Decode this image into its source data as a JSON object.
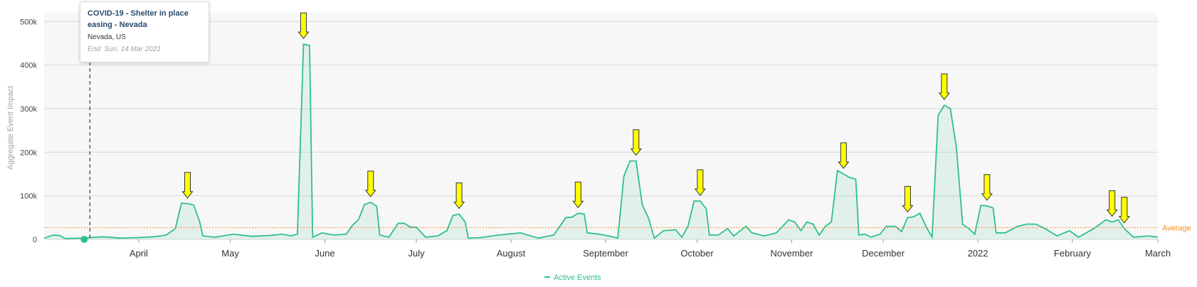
{
  "chart_data": {
    "type": "line",
    "ylabel": "Aggregate Event Impact",
    "ylim": [
      0,
      520000
    ],
    "yticks": [
      "0",
      "100k",
      "200k",
      "300k",
      "400k",
      "500k"
    ],
    "xticks": [
      "April",
      "May",
      "June",
      "July",
      "August",
      "September",
      "October",
      "November",
      "December",
      "2022",
      "February",
      "March"
    ],
    "average_label": "Average",
    "average_value": 27000,
    "legend": "Active Events",
    "x_start": "2021-03-01",
    "x_end": "2022-03-01",
    "series": [
      {
        "name": "Active Events",
        "color": "#2fbf8f",
        "points": [
          [
            "2021-03-01",
            3000
          ],
          [
            "2021-03-04",
            10000
          ],
          [
            "2021-03-06",
            9000
          ],
          [
            "2021-03-08",
            2000
          ],
          [
            "2021-03-14",
            3000
          ],
          [
            "2021-03-20",
            6000
          ],
          [
            "2021-03-26",
            3000
          ],
          [
            "2021-04-01",
            4000
          ],
          [
            "2021-04-06",
            6000
          ],
          [
            "2021-04-10",
            10000
          ],
          [
            "2021-04-13",
            25000
          ],
          [
            "2021-04-15",
            83000
          ],
          [
            "2021-04-17",
            82000
          ],
          [
            "2021-04-19",
            79000
          ],
          [
            "2021-04-21",
            40000
          ],
          [
            "2021-04-22",
            8000
          ],
          [
            "2021-04-26",
            5000
          ],
          [
            "2021-05-02",
            12000
          ],
          [
            "2021-05-08",
            7000
          ],
          [
            "2021-05-14",
            9000
          ],
          [
            "2021-05-18",
            12000
          ],
          [
            "2021-05-21",
            8000
          ],
          [
            "2021-05-23",
            12000
          ],
          [
            "2021-05-25",
            448000
          ],
          [
            "2021-05-27",
            445000
          ],
          [
            "2021-05-28",
            5000
          ],
          [
            "2021-05-31",
            15000
          ],
          [
            "2021-06-04",
            10000
          ],
          [
            "2021-06-08",
            12000
          ],
          [
            "2021-06-10",
            32000
          ],
          [
            "2021-06-12",
            45000
          ],
          [
            "2021-06-14",
            80000
          ],
          [
            "2021-06-16",
            85000
          ],
          [
            "2021-06-18",
            76000
          ],
          [
            "2021-06-19",
            10000
          ],
          [
            "2021-06-22",
            5000
          ],
          [
            "2021-06-25",
            37000
          ],
          [
            "2021-06-27",
            37000
          ],
          [
            "2021-06-29",
            28000
          ],
          [
            "2021-07-01",
            28000
          ],
          [
            "2021-07-04",
            5000
          ],
          [
            "2021-07-08",
            8000
          ],
          [
            "2021-07-11",
            20000
          ],
          [
            "2021-07-13",
            55000
          ],
          [
            "2021-07-15",
            58000
          ],
          [
            "2021-07-17",
            40000
          ],
          [
            "2021-07-18",
            3000
          ],
          [
            "2021-07-22",
            4000
          ],
          [
            "2021-07-28",
            10000
          ],
          [
            "2021-08-04",
            15000
          ],
          [
            "2021-08-10",
            3000
          ],
          [
            "2021-08-15",
            10000
          ],
          [
            "2021-08-19",
            50000
          ],
          [
            "2021-08-21",
            51000
          ],
          [
            "2021-08-23",
            60000
          ],
          [
            "2021-08-25",
            58000
          ],
          [
            "2021-08-26",
            15000
          ],
          [
            "2021-08-30",
            12000
          ],
          [
            "2021-09-02",
            8000
          ],
          [
            "2021-09-05",
            3000
          ],
          [
            "2021-09-07",
            145000
          ],
          [
            "2021-09-09",
            180000
          ],
          [
            "2021-09-11",
            180000
          ],
          [
            "2021-09-13",
            80000
          ],
          [
            "2021-09-15",
            50000
          ],
          [
            "2021-09-17",
            3000
          ],
          [
            "2021-09-20",
            20000
          ],
          [
            "2021-09-24",
            22000
          ],
          [
            "2021-09-26",
            5000
          ],
          [
            "2021-09-28",
            30000
          ],
          [
            "2021-09-30",
            88000
          ],
          [
            "2021-10-02",
            88000
          ],
          [
            "2021-10-04",
            70000
          ],
          [
            "2021-10-05",
            10000
          ],
          [
            "2021-10-08",
            10000
          ],
          [
            "2021-10-11",
            25000
          ],
          [
            "2021-10-13",
            8000
          ],
          [
            "2021-10-17",
            30000
          ],
          [
            "2021-10-19",
            15000
          ],
          [
            "2021-10-23",
            8000
          ],
          [
            "2021-10-27",
            15000
          ],
          [
            "2021-10-31",
            45000
          ],
          [
            "2021-11-02",
            40000
          ],
          [
            "2021-11-04",
            20000
          ],
          [
            "2021-11-06",
            40000
          ],
          [
            "2021-11-08",
            35000
          ],
          [
            "2021-11-10",
            10000
          ],
          [
            "2021-11-12",
            30000
          ],
          [
            "2021-11-14",
            40000
          ],
          [
            "2021-11-16",
            158000
          ],
          [
            "2021-11-18",
            150000
          ],
          [
            "2021-11-20",
            142000
          ],
          [
            "2021-11-22",
            138000
          ],
          [
            "2021-11-23",
            10000
          ],
          [
            "2021-11-25",
            12000
          ],
          [
            "2021-11-27",
            5000
          ],
          [
            "2021-11-30",
            12000
          ],
          [
            "2021-12-02",
            30000
          ],
          [
            "2021-12-05",
            30000
          ],
          [
            "2021-12-07",
            18000
          ],
          [
            "2021-12-09",
            50000
          ],
          [
            "2021-12-11",
            52000
          ],
          [
            "2021-12-13",
            60000
          ],
          [
            "2021-12-15",
            30000
          ],
          [
            "2021-12-17",
            5000
          ],
          [
            "2021-12-19",
            285000
          ],
          [
            "2021-12-21",
            308000
          ],
          [
            "2021-12-23",
            300000
          ],
          [
            "2021-12-25",
            210000
          ],
          [
            "2021-12-27",
            35000
          ],
          [
            "2021-12-29",
            25000
          ],
          [
            "2021-12-31",
            12000
          ],
          [
            "2022-01-02",
            78000
          ],
          [
            "2022-01-04",
            77000
          ],
          [
            "2022-01-06",
            72000
          ],
          [
            "2022-01-07",
            15000
          ],
          [
            "2022-01-10",
            15000
          ],
          [
            "2022-01-14",
            30000
          ],
          [
            "2022-01-17",
            35000
          ],
          [
            "2022-01-20",
            35000
          ],
          [
            "2022-01-23",
            25000
          ],
          [
            "2022-01-27",
            8000
          ],
          [
            "2022-01-31",
            20000
          ],
          [
            "2022-02-03",
            5000
          ],
          [
            "2022-02-08",
            25000
          ],
          [
            "2022-02-12",
            45000
          ],
          [
            "2022-02-14",
            40000
          ],
          [
            "2022-02-16",
            45000
          ],
          [
            "2022-02-18",
            25000
          ],
          [
            "2022-02-21",
            5000
          ],
          [
            "2022-02-26",
            8000
          ],
          [
            "2022-03-01",
            5000
          ]
        ]
      }
    ],
    "arrow_dates": [
      "2021-04-17",
      "2021-05-25",
      "2021-06-16",
      "2021-07-15",
      "2021-08-23",
      "2021-09-11",
      "2021-10-02",
      "2021-11-18",
      "2021-12-09",
      "2021-12-21",
      "2022-01-04",
      "2022-02-14",
      "2022-02-18"
    ],
    "marker_date": "2021-03-16"
  },
  "tooltip": {
    "title": "COVID-19 - Shelter in place easing - Nevada",
    "location": "Nevada, US",
    "end": "End: Sun, 14 Mar 2021"
  }
}
